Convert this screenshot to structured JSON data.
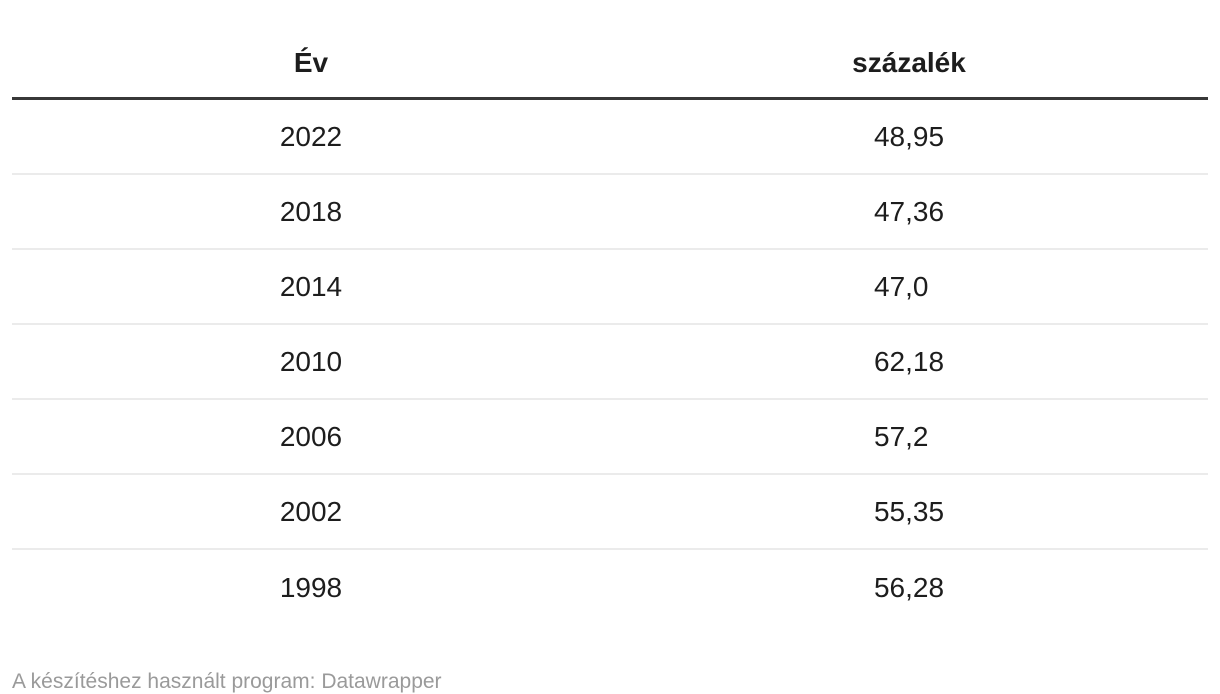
{
  "chart_data": {
    "type": "table",
    "columns": [
      "Év",
      "százalék"
    ],
    "rows": [
      [
        "2022",
        "48,95"
      ],
      [
        "2018",
        "47,36"
      ],
      [
        "2014",
        "47,0"
      ],
      [
        "2010",
        "62,18"
      ],
      [
        "2006",
        "57,2"
      ],
      [
        "2002",
        "55,35"
      ],
      [
        "1998",
        "56,28"
      ]
    ],
    "values_numeric": [
      48.95,
      47.36,
      47.0,
      62.18,
      57.2,
      55.35,
      56.28
    ],
    "caption": "A készítéshez használt program: Datawrapper"
  },
  "table": {
    "columns": [
      {
        "label": "Év"
      },
      {
        "label": "százalék"
      }
    ],
    "rows": [
      {
        "year": "2022",
        "value": "48,95"
      },
      {
        "year": "2018",
        "value": "47,36"
      },
      {
        "year": "2014",
        "value": "47,0"
      },
      {
        "year": "2010",
        "value": "62,18"
      },
      {
        "year": "2006",
        "value": "57,2"
      },
      {
        "year": "2002",
        "value": "55,35"
      },
      {
        "year": "1998",
        "value": "56,28"
      }
    ]
  },
  "footer": {
    "prefix": "A készítéshez használt program: ",
    "program": "Datawrapper"
  },
  "colors": {
    "text": "#1d1d1d",
    "header_rule": "#383838",
    "row_divider": "#ebebeb",
    "footer_text": "#9a9a9a",
    "background": "#ffffff"
  }
}
